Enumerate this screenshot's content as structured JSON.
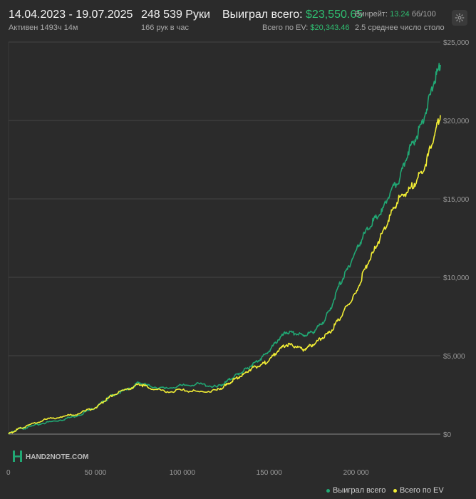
{
  "header": {
    "date_range": "14.04.2023 - 19.07.2025",
    "active": "Активен 1493ч 14м",
    "hands": "248 539 Руки",
    "hands_per_hour": "166 рук в час",
    "won_label": "Выиграл всего:",
    "won_value": "$23,550.65",
    "ev_label": "Всего по EV:",
    "ev_value": "$20,343.46",
    "winrate_label": "Винрейт:",
    "winrate_value": "13.24",
    "winrate_unit": "бб/100",
    "tables": "2.5 среднее число столо"
  },
  "watermark": "HAND2NOTE.COM",
  "colors": {
    "won": "#21a874",
    "ev": "#f2ee35",
    "accent": "#2fbf71"
  },
  "chart_data": {
    "type": "line",
    "x_ticks": [
      "0",
      "50 000",
      "100 000",
      "150 000",
      "200 000"
    ],
    "y_ticks": [
      "$0",
      "$5,000",
      "$10,000",
      "$15,000",
      "$20,000",
      "$25,000"
    ],
    "xlim": [
      0,
      248539
    ],
    "ylim": [
      0,
      25000
    ],
    "legend_position": "bottom-right",
    "series": [
      {
        "name": "Выиграл всего",
        "color": "#21a874",
        "x": [
          0,
          5000,
          10000,
          20000,
          30000,
          40000,
          50000,
          55000,
          60000,
          70000,
          75000,
          80000,
          90000,
          100000,
          110000,
          120000,
          125000,
          130000,
          135000,
          140000,
          145000,
          150000,
          155000,
          160000,
          165000,
          170000,
          175000,
          180000,
          185000,
          190000,
          195000,
          200000,
          205000,
          210000,
          215000,
          220000,
          225000,
          230000,
          235000,
          240000,
          245000,
          248539
        ],
        "y": [
          0,
          300,
          400,
          700,
          900,
          1200,
          1700,
          2100,
          2500,
          2900,
          3300,
          3100,
          2900,
          3100,
          3200,
          3000,
          3300,
          3700,
          4000,
          4400,
          4800,
          5300,
          6000,
          6500,
          6400,
          6300,
          6500,
          7000,
          7900,
          9400,
          10500,
          11700,
          12800,
          13600,
          14200,
          15500,
          16200,
          18000,
          19000,
          20500,
          22500,
          23550
        ]
      },
      {
        "name": "Всего по EV",
        "color": "#f2ee35",
        "x": [
          0,
          5000,
          10000,
          20000,
          30000,
          40000,
          50000,
          55000,
          60000,
          70000,
          75000,
          80000,
          90000,
          100000,
          110000,
          120000,
          125000,
          130000,
          135000,
          140000,
          145000,
          150000,
          155000,
          160000,
          165000,
          170000,
          175000,
          180000,
          185000,
          190000,
          195000,
          200000,
          205000,
          210000,
          215000,
          220000,
          225000,
          230000,
          235000,
          240000,
          245000,
          248539
        ],
        "y": [
          0,
          300,
          500,
          900,
          1100,
          1300,
          1700,
          2100,
          2500,
          2900,
          3200,
          3000,
          2700,
          2800,
          2700,
          2800,
          3100,
          3500,
          3800,
          4200,
          4400,
          4700,
          5300,
          5700,
          5600,
          5400,
          5700,
          6100,
          6500,
          7300,
          8200,
          9000,
          10500,
          11600,
          12800,
          14000,
          15100,
          15500,
          16200,
          17200,
          19000,
          20343
        ]
      }
    ]
  }
}
